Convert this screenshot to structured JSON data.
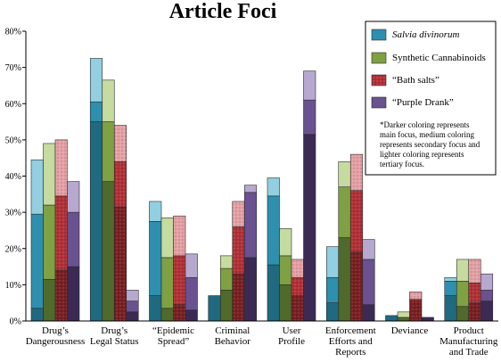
{
  "chart_data": {
    "type": "bar",
    "title": "Article Foci",
    "ylim": [
      0,
      80
    ],
    "yticks": [
      "0%",
      "10%",
      "20%",
      "30%",
      "40%",
      "50%",
      "60%",
      "70%",
      "80%"
    ],
    "categories": [
      [
        "Drug’s",
        "Dangerousness"
      ],
      [
        "Drug’s",
        "Legal Status"
      ],
      [
        "“Epidemic",
        "Spread”"
      ],
      [
        "Criminal",
        "Behavior"
      ],
      [
        "User",
        "Profile"
      ],
      [
        "Enforcement",
        "Efforts and",
        "Reports"
      ],
      [
        "Deviance"
      ],
      [
        "Product",
        "Manufacturing",
        "and Trade"
      ]
    ],
    "stack_levels": [
      "main focus",
      "secondary focus",
      "tertiary focus"
    ],
    "series": [
      {
        "name": "Salvia divinorum",
        "italic": true,
        "colors": [
          "#1f6a80",
          "#2e8fae",
          "#92cfe0"
        ],
        "main": [
          3.5,
          55.0,
          7.0,
          7.0,
          15.5,
          5.0,
          1.5,
          7.0
        ],
        "secondary": [
          26.0,
          5.5,
          20.5,
          0,
          19.0,
          7.0,
          0,
          4.0
        ],
        "tertiary": [
          15.0,
          12.0,
          5.5,
          0,
          5.0,
          8.5,
          0,
          1.0
        ]
      },
      {
        "name": "Synthetic Cannabinoids",
        "italic": false,
        "colors": [
          "#4f6a2a",
          "#7fa043",
          "#c6dba0"
        ],
        "main": [
          11.5,
          38.5,
          3.5,
          8.5,
          10.0,
          23.0,
          1.0,
          4.0
        ],
        "secondary": [
          20.5,
          16.5,
          14.0,
          6.0,
          8.0,
          14.0,
          0,
          7.0
        ],
        "tertiary": [
          17.0,
          11.5,
          11.0,
          3.5,
          7.5,
          7.0,
          1.5,
          6.0
        ]
      },
      {
        "name": "“Bath salts”",
        "italic": false,
        "colors": [
          "#7a1f22",
          "#b23036",
          "#e5a0a4"
        ],
        "main": [
          14.0,
          31.5,
          4.5,
          13.0,
          7.0,
          19.0,
          5.5,
          5.0
        ],
        "secondary": [
          20.5,
          12.5,
          13.5,
          13.0,
          5.0,
          17.0,
          0.5,
          5.5
        ],
        "tertiary": [
          15.5,
          10.0,
          11.0,
          7.0,
          5.0,
          10.0,
          2.0,
          6.5
        ]
      },
      {
        "name": "“Purple Drank”",
        "italic": false,
        "colors": [
          "#3b2a55",
          "#6a5190",
          "#b6a8cf"
        ],
        "main": [
          15.0,
          2.5,
          3.0,
          17.5,
          51.5,
          4.5,
          1.0,
          5.5
        ],
        "secondary": [
          15.0,
          3.0,
          9.0,
          18.0,
          9.5,
          12.5,
          0,
          3.0
        ],
        "tertiary": [
          8.5,
          3.0,
          6.5,
          2.0,
          8.0,
          5.5,
          0,
          4.5
        ]
      }
    ],
    "legend": {
      "placement": "top-right",
      "note": [
        "*Darker coloring represents",
        "main focus, medium coloring",
        "represents secondary focus and",
        "lighter coloring represents",
        "tertiary focus."
      ]
    },
    "grid": false
  }
}
